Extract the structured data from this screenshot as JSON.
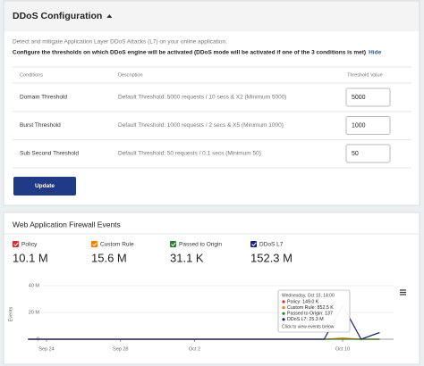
{
  "header": {
    "title": "DDoS Configuration"
  },
  "description": "Detect and mitigate Application Layer DDoS Attacks (L7) on your online application.",
  "instruction": "Configure the thresholds on which DDoS engine will be activated (DDoS mode will be activated if one of the 3 conditions is met)",
  "hide_link": "Hide",
  "table": {
    "columns": [
      "Conditions",
      "Description",
      "Threshold Value"
    ],
    "rows": [
      [
        "Domain Threshold",
        "Default Threshold: 5000 requests / 10 secs & X2 (Minimum 5000)",
        5000
      ],
      [
        "Burst Threshold",
        "Default Threshold: 1000 requests / 2 secs & X5 (Minimum 1000)",
        1000
      ],
      [
        "Sub Second Threshold",
        "Default Threshold: 50 requests / 0.1 secs (Minimum 50)",
        50
      ]
    ]
  },
  "update_button": "Update",
  "events": {
    "title": "Web Application Firewall Events",
    "chart_data": {
      "type": "line",
      "ylabel": "Events",
      "categories": [
        null,
        "Sep 24",
        null,
        null,
        null,
        "Sep 28",
        null,
        null,
        null,
        "Oct 2",
        null,
        null,
        null,
        null,
        null,
        null,
        null,
        "Oct 10",
        null,
        null
      ],
      "series": [
        {
          "name": "Policy",
          "color": "#d32f2f",
          "total": "10.1 M",
          "values": [
            0,
            0,
            0,
            0,
            0,
            0,
            0,
            0,
            0,
            0,
            0,
            0,
            0,
            0,
            0,
            0,
            0,
            149000,
            0,
            0
          ]
        },
        {
          "name": "Custom Rule",
          "color": "#f57c00",
          "total": "15.6 M",
          "values": [
            0,
            0,
            0,
            0,
            0,
            0,
            0,
            0,
            0,
            0,
            0,
            0,
            0,
            0,
            0,
            0,
            0,
            852500,
            0,
            0
          ]
        },
        {
          "name": "Passed to Origin",
          "color": "#2e7d32",
          "total": "31.1 K",
          "values": [
            0,
            0,
            0,
            0,
            0,
            0,
            0,
            0,
            0,
            0,
            0,
            0,
            0,
            0,
            0,
            0,
            0,
            137,
            0,
            0
          ]
        },
        {
          "name": "DDoS L7",
          "color": "#1a237e",
          "total": "152.3 M",
          "values": [
            0,
            0,
            0,
            0,
            0,
            0,
            0,
            0,
            0,
            0,
            0,
            0,
            0,
            0,
            0,
            0,
            0,
            25300000,
            0,
            5000000
          ]
        }
      ],
      "ylim": [
        0,
        40000000
      ],
      "yticks": [
        0,
        {
          "value": 20000000,
          "label": "20 M"
        },
        {
          "value": 40000000,
          "label": "40 M"
        }
      ],
      "tooltip": {
        "title": "Wednesday, Oct 10, 14:00",
        "lines": [
          "Policy: 149.0 K",
          "Custom Rule: 852.5 K",
          "Passed to Origin: 137",
          "DDoS L7: 25.3 M"
        ],
        "footer": "Click to view events below"
      }
    }
  }
}
